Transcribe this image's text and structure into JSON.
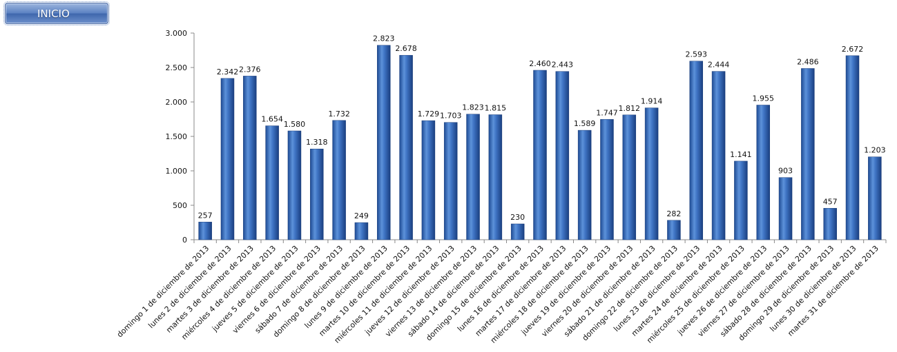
{
  "nav": {
    "inicio_label": "INICIO"
  },
  "colors": {
    "bar": "#2f62b0",
    "bar_light": "#6f9ddc",
    "bar_dark": "#1d3f7a",
    "axis": "#888888"
  },
  "chart_data": {
    "type": "bar",
    "title": "",
    "xlabel": "",
    "ylabel": "",
    "ylim": [
      0,
      3000
    ],
    "yticks": [
      0,
      500,
      1000,
      1500,
      2000,
      2500,
      3000
    ],
    "ytick_labels": [
      "0",
      "500",
      "1.000",
      "1.500",
      "2.000",
      "2.500",
      "3.000"
    ],
    "grid": false,
    "legend": "none",
    "categories": [
      "domingo 1 de diciembre de 2013",
      "lunes 2 de diciembre de 2013",
      "martes 3 de diciembre de 2013",
      "miércoles 4 de diciembre de 2013",
      "jueves 5 de diciembre de 2013",
      "viernes 6 de diciembre de 2013",
      "sábado 7 de diciembre de 2013",
      "domingo 8 de diciembre de 2013",
      "lunes 9 de diciembre de 2013",
      "martes 10 de diciembre de 2013",
      "miércoles 11 de diciembre de 2013",
      "jueves 12 de diciembre de 2013",
      "viernes 13 de diciembre de 2013",
      "sábado 14 de diciembre de 2013",
      "domingo 15 de diciembre de 2013",
      "lunes 16 de diciembre de 2013",
      "martes 17 de diciembre de 2013",
      "miércoles 18 de diciembre de 2013",
      "jueves 19 de diciembre de 2013",
      "viernes 20 de diciembre de 2013",
      "sábado 21 de diciembre de 2013",
      "domingo 22 de diciembre de 2013",
      "lunes 23 de diciembre de 2013",
      "martes 24 de diciembre de 2013",
      "miércoles 25 de diciembre de 2013",
      "jueves 26 de diciembre de 2013",
      "viernes 27 de diciembre de 2013",
      "sábado 28 de diciembre de 2013",
      "domingo 29 de diciembre de 2013",
      "lunes 30 de diciembre de 2013",
      "martes 31 de diciembre de 2013"
    ],
    "values": [
      257,
      2342,
      2376,
      1654,
      1580,
      1318,
      1732,
      249,
      2823,
      2678,
      1729,
      1703,
      1823,
      1815,
      230,
      2460,
      2443,
      1589,
      1747,
      1812,
      1914,
      282,
      2593,
      2444,
      1141,
      1955,
      903,
      2486,
      457,
      2672,
      1203
    ],
    "value_labels": [
      "257",
      "2.342",
      "2.376",
      "1.654",
      "1.580",
      "1.318",
      "1.732",
      "249",
      "2.823",
      "2.678",
      "1.729",
      "1.703",
      "1.823",
      "1.815",
      "230",
      "2.460",
      "2.443",
      "1.589",
      "1.747",
      "1.812",
      "1.914",
      "282",
      "2.593",
      "2.444",
      "1.141",
      "1.955",
      "903",
      "2.486",
      "457",
      "2.672",
      "1.203"
    ]
  }
}
